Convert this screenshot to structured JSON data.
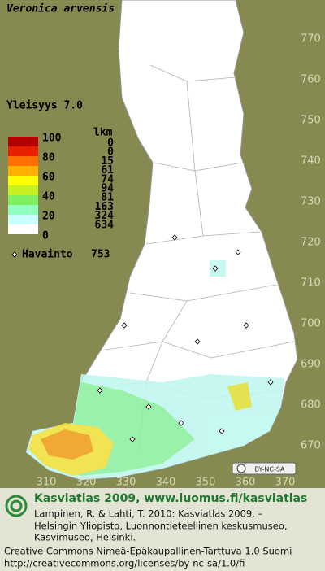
{
  "title": "Veronica arvensis",
  "frequency": "Yleisyys 7.0",
  "legend": {
    "scale_labels": [
      100,
      80,
      60,
      40,
      20,
      0
    ],
    "count_header": "lkm",
    "counts": [
      0,
      0,
      15,
      61,
      74,
      94,
      81,
      163,
      324,
      634
    ]
  },
  "observations": {
    "label": "Havainto",
    "count": 753
  },
  "grid": {
    "y_labels": [
      770,
      760,
      750,
      740,
      730,
      720,
      710,
      700,
      690,
      680,
      670
    ],
    "x_labels": [
      310,
      320,
      330,
      340,
      350,
      360,
      370
    ]
  },
  "license_badge": "BY-NC-SA",
  "footer": {
    "heading": "Kasviatlas 2009, www.luomus.fi/kasviatlas",
    "citation": [
      "Lampinen, R. & Lahti, T. 2010: Kasviatlas 2009. –",
      "Helsingin Yliopisto, Luonnontieteellinen keskusmuseo,",
      "Kasvimuseo, Helsinki."
    ],
    "license": "Creative Commons Nimeä-Epäkaupallinen-Tarttuva 1.0 Suomi",
    "url": "http://creativecommons.org/licenses/by-nc-sa/1.0/fi"
  }
}
